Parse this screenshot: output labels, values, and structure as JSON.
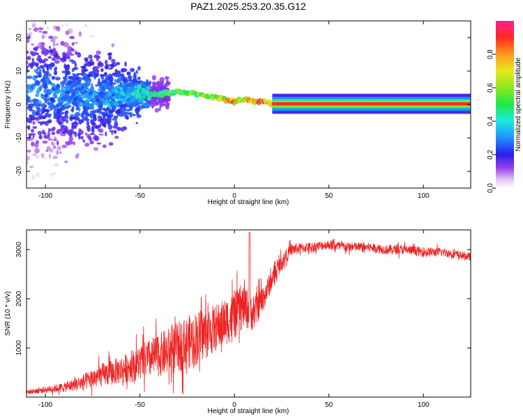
{
  "title": "PAZ1.2025.253.20.35.G12",
  "chart_data": [
    {
      "type": "heatmap",
      "xlabel": "Height of straight line (km)",
      "ylabel": "Frequency (Hz)",
      "xlim": [
        -110,
        125
      ],
      "ylim": [
        -25,
        25
      ],
      "xticks": [
        -100,
        -50,
        0,
        50,
        100
      ],
      "yticks": [
        -20,
        -10,
        0,
        10,
        20
      ],
      "ridge": {
        "description": "spectral ridge frequency vs height",
        "x": [
          -100,
          -90,
          -80,
          -70,
          -60,
          -50,
          -40,
          -30,
          -20,
          -10,
          0,
          5,
          10,
          15,
          20,
          30,
          50,
          80,
          100,
          125
        ],
        "freq": [
          4,
          3,
          3,
          2.5,
          2.5,
          3,
          3,
          4,
          3,
          2,
          1,
          2,
          1,
          1,
          0.3,
          0.2,
          0.2,
          0.2,
          0.2,
          0.2
        ],
        "amplitude": [
          0.25,
          0.3,
          0.3,
          0.3,
          0.35,
          0.45,
          0.5,
          0.55,
          0.6,
          0.65,
          0.75,
          0.75,
          0.8,
          0.85,
          0.9,
          0.9,
          0.9,
          0.9,
          0.9,
          0.9
        ]
      },
      "colorbar": {
        "label": "Normalized spectral amplitude",
        "range": [
          0,
          1
        ],
        "ticks": [
          "0.0",
          "0.2",
          "0.4",
          "0.6",
          "0.8"
        ],
        "tick_values": [
          0,
          0.2,
          0.4,
          0.6,
          0.8
        ]
      }
    },
    {
      "type": "line",
      "xlabel": "Height of straight line (km)",
      "ylabel": "SNR (10 * v/v)",
      "xlim": [
        -110,
        125
      ],
      "ylim": [
        0,
        3400
      ],
      "xticks": [
        -100,
        -50,
        0,
        50,
        100
      ],
      "yticks": [
        1000,
        2000,
        3000
      ],
      "series": [
        {
          "name": "SNR",
          "color": "#ee2222",
          "x": [
            -110,
            -100,
            -90,
            -80,
            -70,
            -60,
            -50,
            -40,
            -30,
            -20,
            -10,
            0,
            5,
            10,
            15,
            20,
            25,
            30,
            40,
            50,
            60,
            70,
            80,
            90,
            100,
            110,
            125
          ],
          "y": [
            100,
            150,
            200,
            300,
            450,
            550,
            700,
            850,
            1000,
            1200,
            1400,
            1650,
            1850,
            1700,
            2000,
            2400,
            2750,
            3000,
            3050,
            3100,
            3050,
            3050,
            3000,
            3000,
            2950,
            2950,
            2850
          ],
          "spread": [
            50,
            80,
            120,
            200,
            300,
            350,
            450,
            550,
            650,
            700,
            600,
            600,
            550,
            450,
            350,
            250,
            200,
            150,
            120,
            120,
            120,
            120,
            120,
            120,
            120,
            110,
            100
          ]
        }
      ]
    }
  ]
}
